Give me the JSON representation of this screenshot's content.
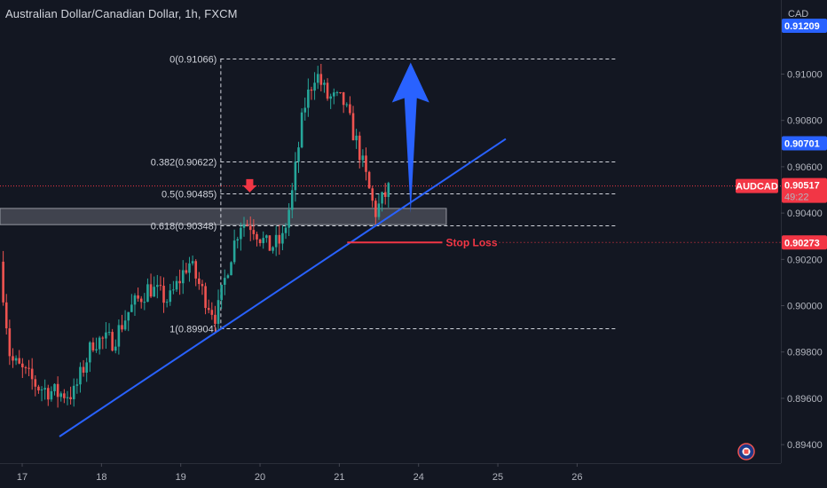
{
  "header": {
    "title": "Australian Dollar/Canadian Dollar, 1h, FXCM"
  },
  "price_axis": {
    "currency": "CAD"
  },
  "chart_data": {
    "type": "candlestick",
    "symbol": "AUDCAD",
    "title": "Australian Dollar/Canadian Dollar, 1h, FXCM",
    "ylim": [
      0.8932,
      0.9132
    ],
    "xlim": [
      16.72,
      26.57
    ],
    "y_ticks": [
      0.894,
      0.896,
      0.898,
      0.9,
      0.902,
      0.904,
      0.906,
      0.908,
      0.91
    ],
    "y_tick_labels": [
      "0.89400",
      "0.89600",
      "0.89800",
      "0.90000",
      "0.90200",
      "0.90400",
      "0.90600",
      "0.90800",
      "0.91000"
    ],
    "x_ticks": [
      17,
      18,
      19,
      20,
      21,
      24,
      25,
      26
    ],
    "x_tick_positions": [
      17,
      18,
      19,
      20,
      21,
      22,
      23,
      24
    ],
    "grid": false,
    "up_color": "#26a69a",
    "down_color": "#ef5350",
    "price_path": [
      [
        16.72,
        0.9019
      ],
      [
        16.85,
        0.8977
      ],
      [
        17.2,
        0.8965
      ],
      [
        17.45,
        0.8962
      ],
      [
        17.65,
        0.8962
      ],
      [
        17.9,
        0.8985
      ],
      [
        18.15,
        0.8985
      ],
      [
        18.35,
        0.8998
      ],
      [
        18.6,
        0.9008
      ],
      [
        18.85,
        0.9002
      ],
      [
        19.1,
        0.9019
      ],
      [
        19.3,
        0.9004
      ],
      [
        19.45,
        0.8995
      ],
      [
        19.6,
        0.9018
      ],
      [
        19.75,
        0.9036
      ],
      [
        19.9,
        0.9035
      ],
      [
        20.1,
        0.9025
      ],
      [
        20.28,
        0.9028
      ],
      [
        20.4,
        0.9047
      ],
      [
        20.55,
        0.9085
      ],
      [
        20.7,
        0.9101
      ],
      [
        20.85,
        0.909
      ],
      [
        21.05,
        0.9088
      ],
      [
        21.25,
        0.9067
      ],
      [
        21.45,
        0.904
      ],
      [
        21.65,
        0.9052
      ]
    ],
    "price_labels": [
      {
        "label": "",
        "value": "0.91209",
        "price": 0.91209,
        "bg": "#2962ff",
        "fg": "#ffffff"
      },
      {
        "label": "",
        "value": "0.90701",
        "price": 0.90701,
        "bg": "#2962ff",
        "fg": "#ffffff"
      },
      {
        "label": "AUDCAD",
        "value": "0.90517",
        "sub": "49:22",
        "price": 0.90517,
        "bg": "#f23645",
        "fg": "#ffffff"
      },
      {
        "label": "",
        "value": "0.90273",
        "price": 0.90273,
        "bg": "#f23645",
        "fg": "#ffffff"
      }
    ],
    "fib_levels": [
      {
        "label": "0(0.91066)",
        "price": 0.91066
      },
      {
        "label": "0.382(0.90622)",
        "price": 0.90622
      },
      {
        "label": "0.5(0.90485)",
        "price": 0.90485
      },
      {
        "label": "0.618(0.90348)",
        "price": 0.90348
      },
      {
        "label": "1(0.89904)",
        "price": 0.89904
      }
    ],
    "fib_range": {
      "start": 19.5,
      "end": 24.5
    },
    "current_price": 0.90517,
    "zone": {
      "top": 0.9042,
      "bottom": 0.9035,
      "start": 16.72,
      "end": 22.35
    },
    "trendline": {
      "p1": [
        17.47,
        0.89435
      ],
      "p2": [
        23.1,
        0.9072
      ],
      "color": "#2962ff"
    },
    "stop_loss": {
      "label": "Stop Loss",
      "price": 0.90273,
      "start": 21.1,
      "end": 22.3,
      "color": "#f23645"
    },
    "markers": [
      {
        "kind": "down-arrow",
        "x": 19.87,
        "price": 0.90485,
        "color": "#f23645"
      },
      {
        "kind": "up-arrow",
        "x": 21.9,
        "price_from": 0.904,
        "price_to": 0.9105,
        "color": "#2962ff"
      }
    ]
  }
}
